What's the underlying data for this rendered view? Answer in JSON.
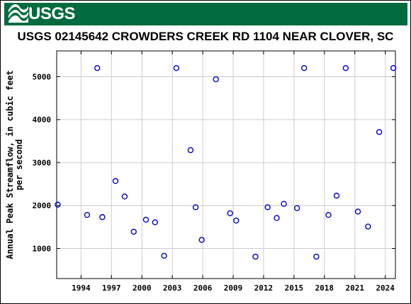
{
  "header": {
    "logo_text": "USGS",
    "logo_color": "#006b3f"
  },
  "chart_data": {
    "type": "scatter",
    "title": "USGS 02145642 CROWDERS CREEK RD 1104 NEAR CLOVER, SC",
    "xlabel": "",
    "ylabel": "Annual Peak Streamflow, in cubic feet per second",
    "ylabel_lines": [
      "Annual Peak Streamflow, in cubic feet",
      "per second"
    ],
    "xlim": [
      1991.6,
      2025.0
    ],
    "ylim": [
      300,
      5600
    ],
    "x_ticks": [
      1994,
      1997,
      2000,
      2003,
      2006,
      2009,
      2012,
      2015,
      2018,
      2021,
      2024
    ],
    "y_ticks": [
      1000,
      2000,
      3000,
      4000,
      5000
    ],
    "grid": true,
    "marker": "open-circle",
    "marker_color": "#0000cc",
    "series": [
      {
        "x": [
          1991.7,
          1994.6,
          1995.6,
          1996.1,
          1997.4,
          1998.3,
          1999.2,
          2000.4,
          2001.3,
          2002.2,
          2003.4,
          2004.8,
          2005.3,
          2005.9,
          2007.3,
          2008.7,
          2009.3,
          2011.2,
          2012.4,
          2013.3,
          2014.0,
          2015.3,
          2016.0,
          2017.2,
          2018.4,
          2019.2,
          2020.1,
          2021.3,
          2022.3,
          2023.4,
          2024.8
        ],
        "y": [
          2020,
          1780,
          5200,
          1730,
          2570,
          2210,
          1390,
          1670,
          1610,
          830,
          5200,
          3290,
          1960,
          1200,
          4940,
          1820,
          1650,
          810,
          1960,
          1710,
          2040,
          1940,
          5200,
          810,
          1780,
          2230,
          5200,
          1860,
          1510,
          3710,
          5200
        ]
      }
    ]
  }
}
